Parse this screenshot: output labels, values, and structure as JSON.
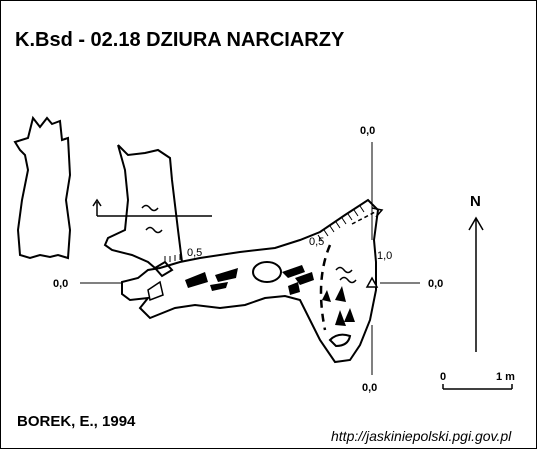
{
  "title": "K.Bsd - 02.18  DZIURA NARCIARZY",
  "author": "BOREK, E., 1994",
  "url": "http://jaskiniepolski.pgi.gov.pl",
  "north_label": "N",
  "scale": {
    "start": "0",
    "end": "1 m"
  },
  "levels": {
    "top": "0,0",
    "left": "0,0",
    "right": "0,0",
    "bottom": "0,0",
    "depth_a": "0,5",
    "depth_b": "0,5",
    "depth_c": "1,0"
  }
}
